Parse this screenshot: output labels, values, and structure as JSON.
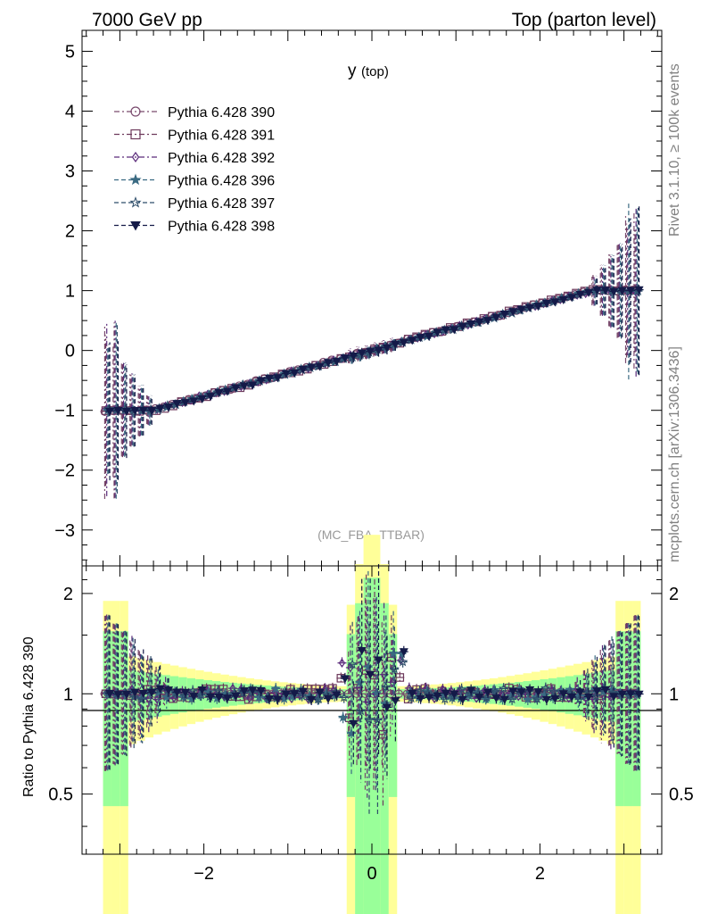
{
  "header": {
    "left": "7000 GeV pp",
    "right": "Top (parton level)"
  },
  "side_text": {
    "upper": "Rivet 3.1.10, ≥ 100k events",
    "lower": "mcplots.cern.ch [arXiv:1306.3436]"
  },
  "chart_data": [
    {
      "panel": "main",
      "type": "line",
      "title_main": "y",
      "title_sub": "(top)",
      "watermark": "(MC_FBA_TTBAR)",
      "xlim": [
        -3.45,
        3.45
      ],
      "ylim": [
        -3.6,
        5.35
      ],
      "yticks": [
        -3,
        -2,
        -1,
        0,
        1,
        2,
        3,
        4,
        5
      ],
      "ytick_labels": [
        "−3",
        "−2",
        "−1",
        "0",
        "1",
        "2",
        "3",
        "4",
        "5"
      ],
      "legend_position": "top-left",
      "x": [
        -3.15,
        -3.05,
        -2.95,
        -2.85,
        -2.75,
        -2.65,
        -2.55,
        -2.45,
        -2.35,
        -2.25,
        -2.15,
        -2.05,
        -1.95,
        -1.85,
        -1.75,
        -1.65,
        -1.55,
        -1.45,
        -1.35,
        -1.25,
        -1.15,
        -1.05,
        -0.95,
        -0.85,
        -0.75,
        -0.65,
        -0.55,
        -0.45,
        -0.35,
        -0.25,
        -0.15,
        -0.05,
        0.05,
        0.15,
        0.25,
        0.35,
        0.45,
        0.55,
        0.65,
        0.75,
        0.85,
        0.95,
        1.05,
        1.15,
        1.25,
        1.35,
        1.45,
        1.55,
        1.65,
        1.75,
        1.85,
        1.95,
        2.05,
        2.15,
        2.25,
        2.35,
        2.45,
        2.55,
        2.65,
        2.75,
        2.85,
        2.95,
        3.05,
        3.15
      ],
      "series": [
        {
          "name": "Pythia 6.428 390",
          "color": "#7a4a6e",
          "marker": "circle-open",
          "dash": "6,3,2,3",
          "y_scale": 1.0
        },
        {
          "name": "Pythia 6.428 391",
          "color": "#6e3a5c",
          "marker": "square-open",
          "dash": "6,3,2,3",
          "y_scale": 1.01
        },
        {
          "name": "Pythia 6.428 392",
          "color": "#5a2a7a",
          "marker": "diamond-open",
          "dash": "6,3,2,3",
          "y_scale": 0.99
        },
        {
          "name": "Pythia 6.428 396",
          "color": "#3a6a82",
          "marker": "star-filled",
          "dash": "5,3",
          "y_scale": 1.0
        },
        {
          "name": "Pythia 6.428 397",
          "color": "#2e4e6a",
          "marker": "star-open",
          "dash": "5,3",
          "y_scale": 0.99
        },
        {
          "name": "Pythia 6.428 398",
          "color": "#141a48",
          "marker": "triangle-down-filled",
          "dash": "5,3",
          "y_scale": 1.0
        }
      ],
      "y_unit_mean": "-1 to 1 linear in y, saturating at |y| > 2.6"
    },
    {
      "panel": "ratio",
      "type": "line",
      "ylabel": "Ratio to Pythia 6.428 390",
      "ylim": [
        0.33,
        2.42
      ],
      "log_y": true,
      "yticks": [
        0.5,
        1,
        2
      ],
      "ytick_labels": [
        "0.5",
        "1",
        "2"
      ],
      "xticks": [
        -2,
        0,
        2
      ],
      "xtick_labels": [
        "−2",
        "0",
        "2"
      ],
      "band_colors": {
        "inner": "#99ff99",
        "outer": "#ffff99"
      }
    }
  ]
}
